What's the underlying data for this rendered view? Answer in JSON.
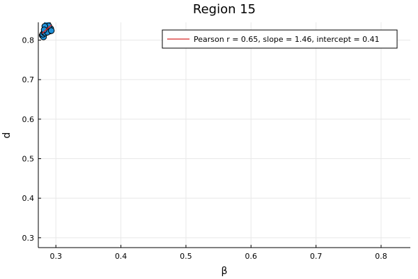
{
  "chart_data": {
    "type": "scatter",
    "title": "Region 15",
    "xlabel": "β",
    "ylabel": "d",
    "xlim": [
      0.273,
      0.845
    ],
    "ylim": [
      0.275,
      0.845
    ],
    "x_ticks": [
      0.3,
      0.4,
      0.5,
      0.6,
      0.7,
      0.8
    ],
    "y_ticks": [
      0.3,
      0.4,
      0.5,
      0.6,
      0.7,
      0.8
    ],
    "x_tick_labels": [
      "0.3",
      "0.4",
      "0.5",
      "0.6",
      "0.7",
      "0.8"
    ],
    "y_tick_labels": [
      "0.3",
      "0.4",
      "0.5",
      "0.6",
      "0.7",
      "0.8"
    ],
    "grid": true,
    "legend_position": "top-right",
    "colors": {
      "points": "#1f8fd6",
      "point_edge": "#000000",
      "fit_line": "#d62728"
    },
    "series": [
      {
        "type": "scatter",
        "values": [
          [
            0.279,
            0.812
          ],
          [
            0.281,
            0.808
          ],
          [
            0.28,
            0.815
          ],
          [
            0.282,
            0.819
          ],
          [
            0.283,
            0.823
          ],
          [
            0.284,
            0.828
          ],
          [
            0.285,
            0.833
          ],
          [
            0.286,
            0.838
          ],
          [
            0.287,
            0.842
          ],
          [
            0.284,
            0.818
          ],
          [
            0.286,
            0.826
          ],
          [
            0.288,
            0.831
          ],
          [
            0.29,
            0.826
          ],
          [
            0.291,
            0.823
          ],
          [
            0.292,
            0.829
          ],
          [
            0.289,
            0.836
          ],
          [
            0.283,
            0.835
          ],
          [
            0.287,
            0.82
          ],
          [
            0.282,
            0.826
          ],
          [
            0.293,
            0.824
          ]
        ]
      },
      {
        "name": "Pearson r = 0.65, slope = 1.46, intercept = 0.41",
        "type": "line",
        "values": [
          [
            0.279,
            0.817
          ],
          [
            0.293,
            0.838
          ]
        ]
      }
    ]
  }
}
